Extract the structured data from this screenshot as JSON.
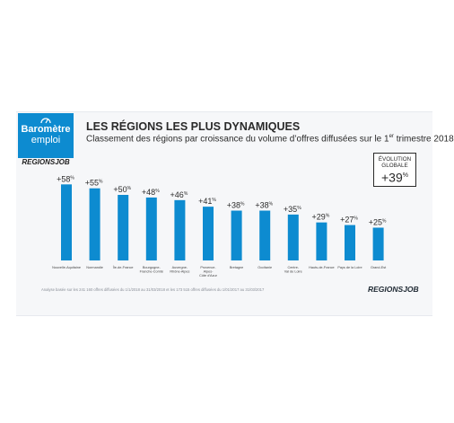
{
  "logo": {
    "line1": "Baromètre",
    "line2": "emploi",
    "brand": "REGIONSJOB",
    "bg": "#0d8bd0"
  },
  "header": {
    "title": "LES RÉGIONS LES PLUS DYNAMIQUES",
    "subtitle": "Classement des régions par croissance du volume d’offres diffusées sur le 1",
    "subtitle_sup": "er",
    "subtitle_end": " trimestre 2018"
  },
  "evolution": {
    "label_line1": "ÉVOLUTION",
    "label_line2": "GLOBALE",
    "value": "+39",
    "unit": "%"
  },
  "chart_data": {
    "type": "bar",
    "categories": [
      [
        "Nouvelle-Aquitaine"
      ],
      [
        "Normandie"
      ],
      [
        "Île-de-France"
      ],
      [
        "Bourgogne-",
        "Franche-Comté"
      ],
      [
        "Auvergne-",
        "Rhône-Alpes"
      ],
      [
        "Provence-",
        "Alpes-",
        "Côte d'Azur"
      ],
      [
        "Bretagne"
      ],
      [
        "Occitanie"
      ],
      [
        "Centre-",
        "Val de Loire"
      ],
      [
        "Hauts-de-France"
      ],
      [
        "Pays de la Loire"
      ],
      [
        "Grand-Est"
      ]
    ],
    "values": [
      58,
      55,
      50,
      48,
      46,
      41,
      38,
      38,
      35,
      29,
      27,
      25
    ],
    "value_labels": [
      "+58",
      "+55",
      "+50",
      "+48",
      "+46",
      "+41",
      "+38",
      "+38",
      "+35",
      "+29",
      "+27",
      "+25"
    ],
    "unit": "%",
    "bar_color": "#0d8bd0"
  },
  "footer": {
    "note": "Analyse basée sur les 241 160 offres diffusées du 1/1/2018 au 31/03/2018 et les 173 515 offres diffusées du 1/01/2017 au 31/03/2017",
    "brand": "REGIONSJOB"
  }
}
